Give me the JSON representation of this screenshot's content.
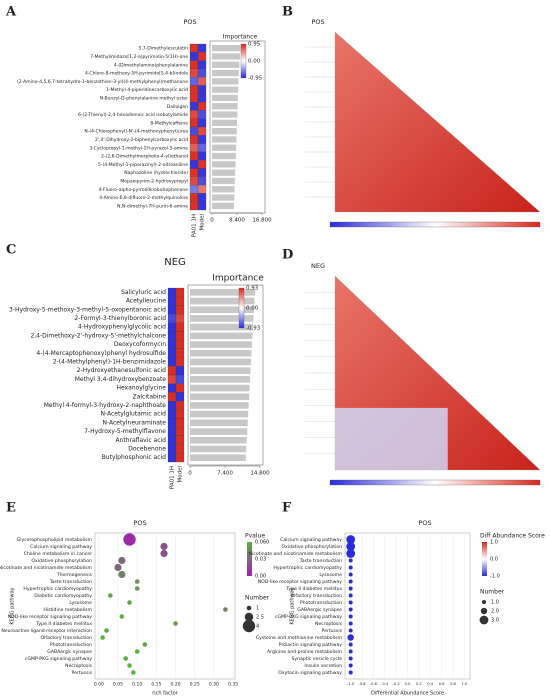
{
  "chart_data": [
    {
      "type": "bar",
      "panel": "A",
      "title": "POS",
      "xlabel": "Importance",
      "color": "#c8c8c8",
      "categories": [
        "5,7-Dimethylesculetin",
        "7-Methylimidazo[1,2-a]pyrimidin-5(1H)-one",
        "4-(Dimethylamino)phenylalanine",
        "4-Chloro-8-methoxy-5H-pyrimido[5,4-b]indole",
        "(2-Amino-4,5,6,7-tetrahydro-1-benzothien-3-yl)(4-methylphenyl)methanone",
        "1-Methyl-4-piperidinecarboxylic acid",
        "N-Benzyl-D-phenylalanine methyl ester",
        "Dalloigen",
        "6-(2-Thienyl)-2,4-hexadienoic acid isobutylamide",
        "8-Methylcaffeine",
        "N-(4-Chlorophenyl)-N'-(4-methoxyphenyl)urea",
        "2',4'-Dihydroxy-2-biphenylcarboxylic acid",
        "3-Cyclopropyl-1-methyl-1H-pyrazol-5-amine",
        "2-(2,6-Dimethylmorpholin-4-yl)ethanol",
        "5-(4-Methyl-1-piperazinyl)-2-nitroaniline",
        "Naphazoline (hydrochloride)",
        "Mepanipyrim-2-hydroxypropyl",
        "4-Fluoro-alpha-pyrrolidinobutiophenone",
        "4-Amino-6,8-difluoro-2-methylquinoline",
        "N,N-dimethyl-7H-purin-6-amine"
      ],
      "values": [
        9.6,
        9.4,
        9.2,
        9.0,
        8.9,
        8.8,
        8.7,
        8.6,
        8.5,
        8.4,
        8.3,
        8.2,
        8.1,
        8.0,
        7.9,
        7.8,
        7.7,
        7.6,
        7.5,
        7.4
      ],
      "xlim": [
        0,
        16.8
      ],
      "xticks": [
        0,
        {
          "value": 8.4,
          "label": "8.400"
        },
        {
          "value": 16.8,
          "label": "16.800"
        }
      ],
      "heatmap": {
        "columns": [
          "PA01 1H",
          "Model"
        ],
        "values": [
          [
            0.9,
            -0.9,
            0.9,
            0.8,
            -0.7,
            0.9,
            0.9,
            -0.9,
            0.8,
            0.9,
            -0.8,
            0.9,
            0.7,
            0.9,
            -0.9,
            0.9,
            0.8,
            -0.6,
            0.9,
            0.9
          ],
          [
            -0.9,
            0.9,
            -0.9,
            -0.8,
            0.7,
            -0.9,
            -0.9,
            0.9,
            -0.8,
            -0.9,
            0.8,
            -0.9,
            -0.7,
            -0.9,
            0.9,
            -0.9,
            -0.8,
            0.6,
            -0.9,
            -0.9
          ]
        ],
        "clim": [
          -0.95,
          0.95
        ],
        "cticks": [
          {
            "value": 0.95,
            "label": "0.95"
          },
          {
            "value": 0,
            "label": "0.00"
          },
          {
            "value": -0.95,
            "label": "-0.95"
          }
        ]
      }
    },
    {
      "type": "correlation",
      "panel": "B",
      "title": "POS"
    },
    {
      "type": "bar",
      "panel": "C",
      "title": "NEG",
      "xlabel": "Importance",
      "color": "#c8c8c8",
      "categories": [
        "Salicyluric acid",
        "Acetylleucine",
        "3-Hydroxy-5-methoxy-3-methyl-5-oxopentanoic acid",
        "2-Formyl-3-thienylboronic acid",
        "4-Hydroxyphenylglycolic acid",
        "2,4-Dimethoxy-2'-hydroxy-5'-methylchalcone",
        "Deoxycoformycin",
        "4-(4-Mercaptophenoxy)phenyl hydrosulfide",
        "2-(4-Methylphenyl)-1H-benzimidazole",
        "2-Hydroxyethanesulfonic acid",
        "Methyl 3,4-dihydroxybenzoate",
        "Hexanoylglycine",
        "Zalcitabine",
        "Methyl 4-formyl-3-hydroxy-2-naphthoate",
        "N-Acetylglutamic acid",
        "N-Acetylneuraminate",
        "7-Hydroxy-5-methylflavone",
        "Anthraflavic acid",
        "Docebenone",
        "Butylphosphonic acid"
      ],
      "values": [
        13.8,
        13.6,
        13.5,
        13.4,
        13.3,
        13.2,
        13.1,
        13.0,
        12.9,
        12.8,
        12.7,
        12.6,
        12.5,
        12.4,
        12.3,
        12.2,
        12.1,
        12.0,
        11.9,
        11.8
      ],
      "xlim": [
        0,
        14.8
      ],
      "xticks": [
        0,
        {
          "value": 7.4,
          "label": "7.400"
        },
        {
          "value": 14.8,
          "label": "14.800"
        }
      ],
      "heatmap": {
        "columns": [
          "PA01 1H",
          "Model"
        ],
        "values": [
          [
            -0.9,
            -0.9,
            -0.9,
            -0.8,
            -0.9,
            -0.9,
            -0.9,
            -0.9,
            -0.9,
            0.9,
            0.8,
            -0.9,
            0.9,
            -0.9,
            -0.9,
            -0.9,
            -0.9,
            -0.9,
            -0.9,
            -0.9
          ],
          [
            0.9,
            0.9,
            0.9,
            0.8,
            0.9,
            0.9,
            0.9,
            0.9,
            0.9,
            -0.9,
            -0.8,
            0.9,
            -0.9,
            0.9,
            0.9,
            0.9,
            0.9,
            0.9,
            0.9,
            0.9
          ]
        ],
        "clim": [
          -0.93,
          0.93
        ],
        "cticks": [
          {
            "value": 0.93,
            "label": "0.93"
          },
          {
            "value": 0,
            "label": "0.00"
          },
          {
            "value": -0.93,
            "label": "-0.93"
          }
        ]
      }
    },
    {
      "type": "correlation",
      "panel": "D",
      "title": "NEG"
    },
    {
      "type": "bubble",
      "panel": "E",
      "title": "POS",
      "xlabel": "rich factor",
      "ylabel": "KEGG pathway",
      "categories": [
        "Glycerophospholipid metabolism",
        "Calcium signaling pathway",
        "Choline metabolism in cancer",
        "Oxidative phosphorylation",
        "Nicotinate and nicotinamide metabolism",
        "Thermogenesis",
        "Taste transduction",
        "Hypertrophic cardiomyopathy",
        "Diabetic cardiomyopathy",
        "Lysosome",
        "Histidine metabolism",
        "NOD-like receptor signaling pathway",
        "Type II diabetes mellitus",
        "Neuroactive ligand-receptor interaction",
        "Olfactory transduction",
        "Phototransduction",
        "GABAergic synapse",
        "cGMP-PKG signaling pathway",
        "Necroptosis",
        "Pertussis"
      ],
      "x": [
        0.08,
        0.17,
        0.17,
        0.06,
        0.05,
        0.06,
        0.1,
        0.1,
        0.03,
        0.08,
        0.33,
        0.06,
        0.2,
        0.02,
        0.01,
        0.12,
        0.1,
        0.07,
        0.08,
        0.09
      ],
      "pvalue": [
        0.005,
        0.02,
        0.02,
        0.03,
        0.03,
        0.04,
        0.05,
        0.05,
        0.055,
        0.055,
        0.04,
        0.058,
        0.05,
        0.055,
        0.06,
        0.055,
        0.058,
        0.06,
        0.06,
        0.06
      ],
      "number": [
        4,
        2,
        2,
        2,
        2,
        2,
        1,
        1,
        1,
        1,
        1,
        1,
        1,
        1,
        1,
        1,
        1,
        1,
        1,
        1
      ],
      "xlim": [
        -0.01,
        0.355
      ],
      "xticks": [
        {
          "value": 0,
          "label": "0.00"
        },
        0.05,
        {
          "value": 0.1,
          "label": "0.10"
        },
        0.15,
        {
          "value": 0.2,
          "label": "0.20"
        },
        0.25,
        {
          "value": 0.3,
          "label": "0.30"
        },
        0.35
      ],
      "color_legend": {
        "title": "Pvalue",
        "lim": [
          0,
          0.06
        ],
        "ticks": [
          {
            "value": 0.06,
            "label": "0.060"
          },
          0.03,
          {
            "value": 0,
            "label": "0.00"
          }
        ]
      },
      "size_legend": {
        "title": "Number",
        "values": [
          1,
          2.5,
          4
        ]
      }
    },
    {
      "type": "dot",
      "panel": "F",
      "title": "POS",
      "xlabel": "Differential Abundance Score",
      "ylabel": "KEGG pathway",
      "categories": [
        "Calcium signaling pathway",
        "Oxidative phosphorylation",
        "Nicotinate and nicotinamide metabolism",
        "Taste transduction",
        "Hypertrophic cardiomyopathy",
        "Lysosome",
        "NOD-like receptor signaling pathway",
        "Type II diabetes mellitus",
        "Olfactory transduction",
        "Phototransduction",
        "GABAergic synapse",
        "cGMP-PKG signaling pathway",
        "Necroptosis",
        "Pertussis",
        "Cysteine and methionine metabolism",
        "Prolactin signaling pathway",
        "Arginine and proline metabolism",
        "Synaptic vesicle cycle",
        "Insulin secretion",
        "Oxytocin signaling pathway"
      ],
      "values": [
        -1,
        -1,
        -1,
        -1,
        -1,
        -1,
        -1,
        -1,
        -1,
        -1,
        -1,
        -1,
        -1,
        -1,
        -1,
        -1,
        -1,
        -1,
        -1,
        -1
      ],
      "number": [
        3,
        3,
        3,
        1,
        1,
        1,
        1,
        1,
        1,
        1,
        1,
        1,
        1,
        1,
        2,
        1,
        1,
        1,
        1,
        1
      ],
      "xlim": [
        -1.1,
        1.1
      ],
      "xticks": [
        {
          "value": -1,
          "label": "-1.0"
        },
        -0.8,
        -0.6,
        -0.4,
        -0.2,
        {
          "value": 0,
          "label": "0.0"
        },
        0.2,
        0.4,
        0.6,
        0.8,
        {
          "value": 1,
          "label": "1.0"
        }
      ],
      "color_legend": {
        "title": "Diff Abundance Score",
        "lim": [
          -1,
          1
        ],
        "ticks": [
          {
            "value": 1,
            "label": "1.0"
          },
          {
            "value": 0,
            "label": "0.0"
          },
          {
            "value": -1,
            "label": "-1.0"
          }
        ]
      },
      "size_legend": {
        "title": "Number",
        "values": [
          {
            "value": 1,
            "label": "1.0"
          },
          {
            "value": 2,
            "label": "2.0"
          },
          {
            "value": 3,
            "label": "3.0"
          }
        ]
      }
    }
  ]
}
